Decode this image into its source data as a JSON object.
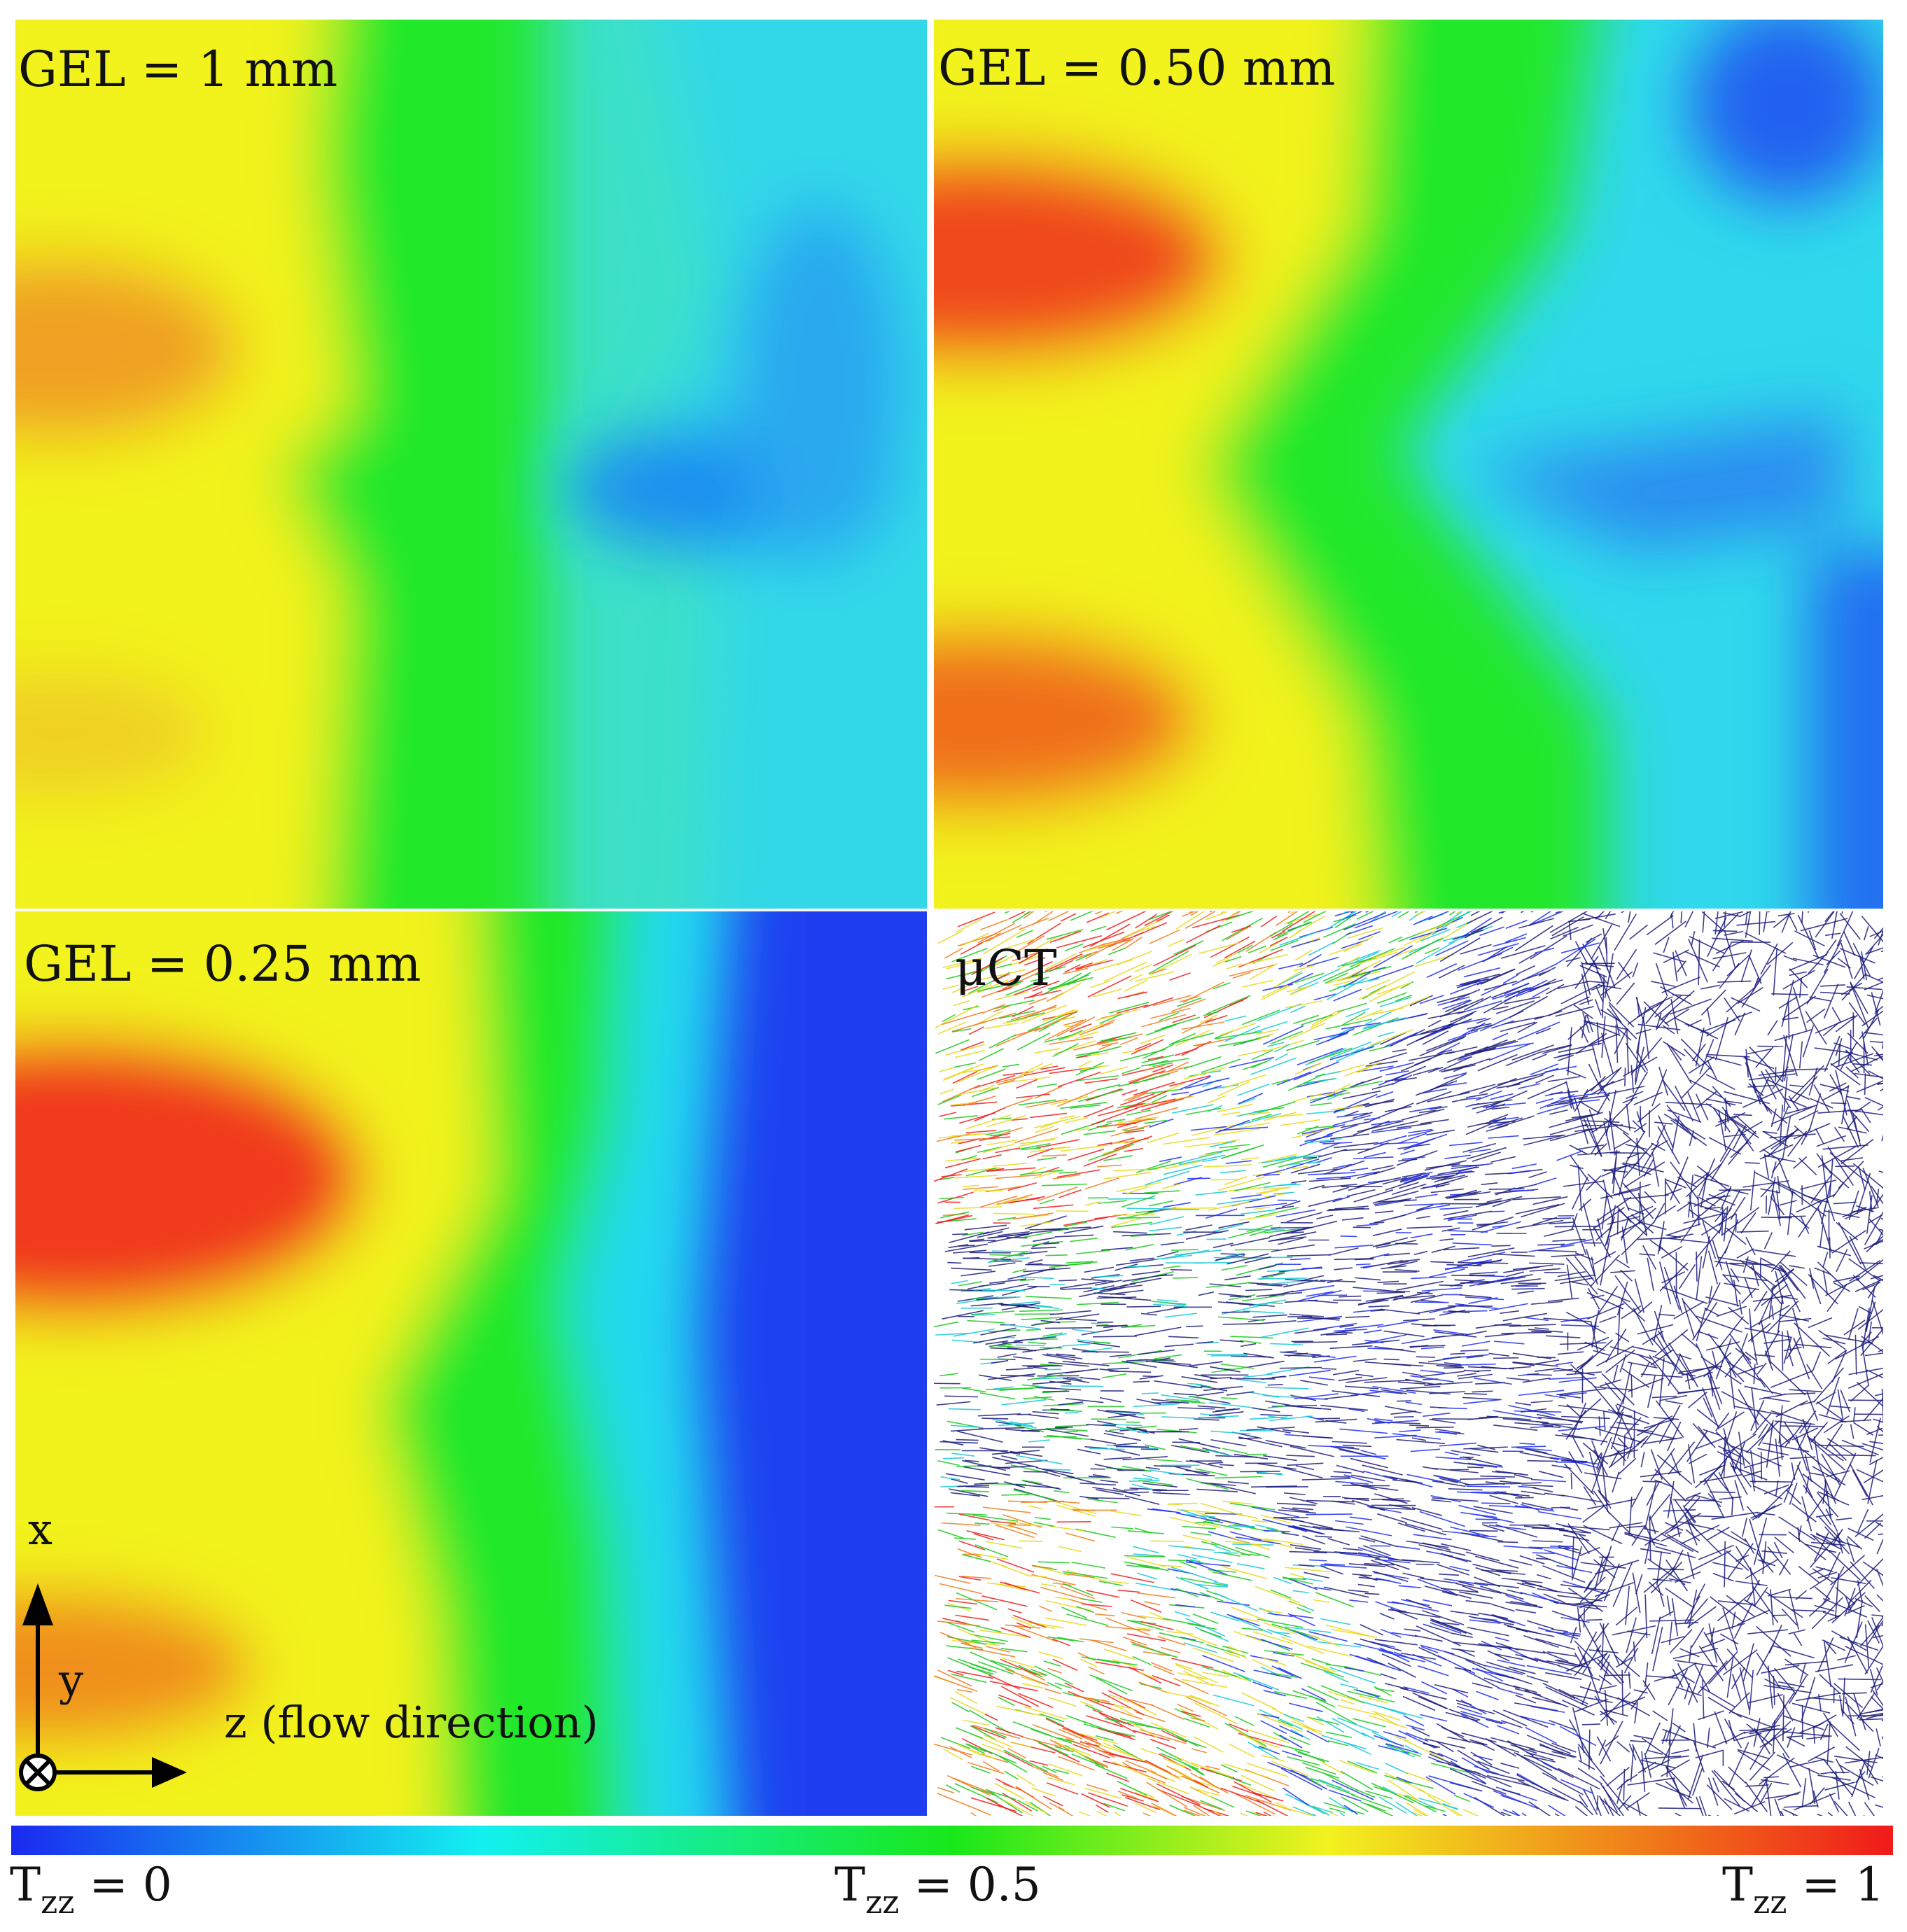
{
  "panels": [
    {
      "label": "GEL = 1 mm"
    },
    {
      "label": "GEL = 0.50 mm"
    },
    {
      "label": "GEL = 0.25 mm"
    },
    {
      "label": "μCT"
    }
  ],
  "axes": {
    "x_label": "x",
    "y_label": "y",
    "z_label": "z (flow direction)"
  },
  "colorbar": {
    "symbol": "T",
    "subscript": "zz",
    "min_value": "= 0",
    "mid_value": "= 0.5",
    "max_value": "= 1",
    "colors": [
      "#1a2af0",
      "#13c8f0",
      "#18e81a",
      "#f2f21e",
      "#f07a1a",
      "#f01a1a"
    ]
  }
}
